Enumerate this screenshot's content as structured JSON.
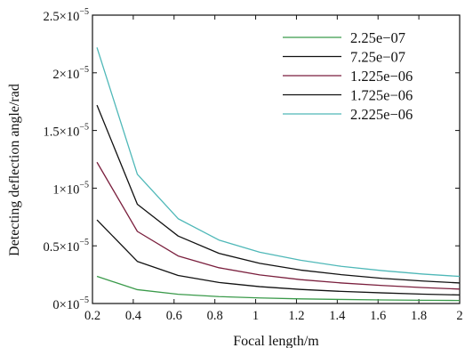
{
  "chart_data": {
    "type": "line",
    "xlabel": "Focal length/m",
    "ylabel": "Detecting deflection angle/rad",
    "xlim": [
      0.2,
      2.0
    ],
    "ylim": [
      0,
      2.5e-05
    ],
    "x_ticks": [
      "0.2",
      "0.4",
      "0.6",
      "0.8",
      "1",
      "1.2",
      "1.4",
      "1.6",
      "1.8",
      "2"
    ],
    "x_tick_values": [
      0.2,
      0.4,
      0.6,
      0.8,
      1.0,
      1.2,
      1.4,
      1.6,
      1.8,
      2.0
    ],
    "y_tick_values": [
      0,
      5e-06,
      1e-05,
      1.5e-05,
      2e-05,
      2.5e-05
    ],
    "y_ticks": [
      {
        "mantissa": "0×10",
        "exp": "−5"
      },
      {
        "mantissa": "0.5×10",
        "exp": "−5"
      },
      {
        "mantissa": "1×10",
        "exp": "−5"
      },
      {
        "mantissa": "1.5×10",
        "exp": "−5"
      },
      {
        "mantissa": "2×10",
        "exp": "−5"
      },
      {
        "mantissa": "2.5×10",
        "exp": "−5"
      }
    ],
    "grid": false,
    "legend_position": "top-right",
    "x": [
      0.222,
      0.42,
      0.62,
      0.82,
      1.02,
      1.22,
      1.42,
      1.62,
      1.82,
      2.0
    ],
    "series": [
      {
        "name": "2.25e−07",
        "color": "#3a9a4a",
        "values": [
          2.35e-06,
          1.2e-06,
          8e-07,
          6e-07,
          4.8e-07,
          4e-07,
          3.5e-07,
          3.1e-07,
          2.8e-07,
          2.6e-07
        ]
      },
      {
        "name": "7.25e−07",
        "color": "#111111",
        "values": [
          7.25e-06,
          3.65e-06,
          2.43e-06,
          1.82e-06,
          1.46e-06,
          1.22e-06,
          1.05e-06,
          9.2e-07,
          8.1e-07,
          7.4e-07
        ]
      },
      {
        "name": "1.225e−06",
        "color": "#7a1f3d",
        "values": [
          1.225e-05,
          6.25e-06,
          4.12e-06,
          3.1e-06,
          2.48e-06,
          2.07e-06,
          1.78e-06,
          1.56e-06,
          1.38e-06,
          1.25e-06
        ]
      },
      {
        "name": "1.725e−06",
        "color": "#111111",
        "values": [
          1.72e-05,
          8.6e-06,
          5.85e-06,
          4.35e-06,
          3.48e-06,
          2.9e-06,
          2.5e-06,
          2.18e-06,
          1.95e-06,
          1.78e-06
        ]
      },
      {
        "name": "2.225e−06",
        "color": "#4fb8b8",
        "values": [
          2.22e-05,
          1.12e-05,
          7.35e-06,
          5.5e-06,
          4.45e-06,
          3.75e-06,
          3.22e-06,
          2.85e-06,
          2.55e-06,
          2.35e-06
        ]
      }
    ]
  }
}
